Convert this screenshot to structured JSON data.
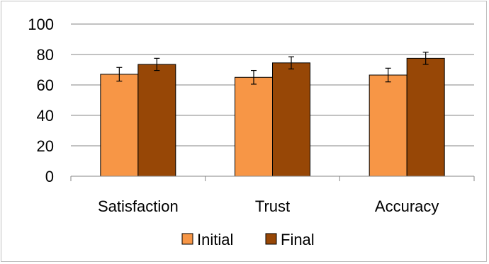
{
  "chart_data": {
    "type": "bar",
    "categories": [
      "Satisfaction",
      "Trust",
      "Accuracy"
    ],
    "series": [
      {
        "name": "Initial",
        "color": "#f79646",
        "values": [
          67,
          65,
          66.5
        ],
        "errors": [
          4.5,
          4.5,
          4.5
        ]
      },
      {
        "name": "Final",
        "color": "#974706",
        "values": [
          73.5,
          74.5,
          77.5
        ],
        "errors": [
          4,
          4,
          4
        ]
      }
    ],
    "ylim": [
      0,
      100
    ],
    "yticks": [
      0,
      20,
      40,
      60,
      80,
      100
    ],
    "grid": true,
    "legend": "bottom"
  }
}
